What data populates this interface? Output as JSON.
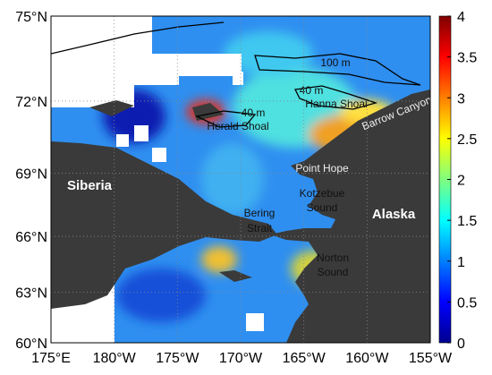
{
  "map": {
    "lat_ticks": [
      {
        "value": 75,
        "label": "75°N"
      },
      {
        "value": 72,
        "label": "72°N"
      },
      {
        "value": 69,
        "label": "69°N"
      },
      {
        "value": 66,
        "label": "66°N"
      },
      {
        "value": 63,
        "label": "63°N"
      },
      {
        "value": 60,
        "label": "60°N"
      }
    ],
    "lon_ticks": [
      {
        "value": 175,
        "label": "175°E"
      },
      {
        "value": -180,
        "label": "180°W"
      },
      {
        "value": -175,
        "label": "175°W"
      },
      {
        "value": -170,
        "label": "170°W"
      },
      {
        "value": -165,
        "label": "165°W"
      },
      {
        "value": -160,
        "label": "160°W"
      },
      {
        "value": -155,
        "label": "155°W"
      }
    ],
    "places": {
      "siberia": "Siberia",
      "alaska": "Alaska",
      "point_hope": "Point Hope",
      "bering_strait": [
        "Bering",
        "Strait"
      ],
      "kotzebue_sound": [
        "Kotzebue",
        "Sound"
      ],
      "norton_sound": [
        "Norton",
        "Sound"
      ],
      "herald_shoal": "Herald Shoal",
      "hanna_shoal": "Hanna Shoal",
      "barrow_canyon": "Barrow Canyon",
      "contour_100": "100 m",
      "contour_40_a": "40 m",
      "contour_40_b": "40 m"
    },
    "colorbar": {
      "range": [
        0,
        4
      ],
      "ticks": [
        0,
        0.5,
        1,
        1.5,
        2,
        2.5,
        3,
        3.5,
        4
      ]
    }
  }
}
